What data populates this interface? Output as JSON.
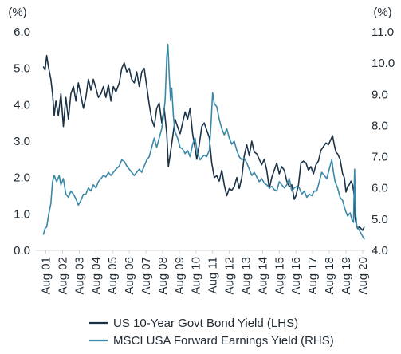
{
  "chart_data": {
    "type": "line",
    "title": "",
    "left_unit": "(%)",
    "right_unit": "(%)",
    "left_ylim": [
      0,
      6
    ],
    "right_ylim": [
      4,
      11
    ],
    "left_ticks": [
      "0.0",
      "1.0",
      "2.0",
      "3.0",
      "4.0",
      "5.0",
      "6.0"
    ],
    "right_ticks": [
      "4.0",
      "5.0",
      "6.0",
      "7.0",
      "8.0",
      "9.0",
      "10.0",
      "11.0"
    ],
    "x_range": [
      2001.0,
      2020.75
    ],
    "x_ticks": [
      {
        "label": "Aug 01",
        "x": 2001.6
      },
      {
        "label": "Aug 02",
        "x": 2002.6
      },
      {
        "label": "Aug 03",
        "x": 2003.6
      },
      {
        "label": "Aug 04",
        "x": 2004.6
      },
      {
        "label": "Aug 05",
        "x": 2005.6
      },
      {
        "label": "Aug 06",
        "x": 2006.6
      },
      {
        "label": "Aug 07",
        "x": 2007.6
      },
      {
        "label": "Aug 08",
        "x": 2008.6
      },
      {
        "label": "Aug 09",
        "x": 2009.6
      },
      {
        "label": "Aug 10",
        "x": 2010.6
      },
      {
        "label": "Aug 11",
        "x": 2011.6
      },
      {
        "label": "Aug 12",
        "x": 2012.6
      },
      {
        "label": "Aug 13",
        "x": 2013.6
      },
      {
        "label": "Aug 14",
        "x": 2014.6
      },
      {
        "label": "Aug 15",
        "x": 2015.6
      },
      {
        "label": "Aug 16",
        "x": 2016.6
      },
      {
        "label": "Aug 17",
        "x": 2017.6
      },
      {
        "label": "Aug 18",
        "x": 2018.6
      },
      {
        "label": "Aug 19",
        "x": 2019.6
      },
      {
        "label": "Aug 20",
        "x": 2020.6
      }
    ],
    "series": [
      {
        "name": "US 10-Year Govt Bond Yield (LHS)",
        "axis": "left",
        "color": "#1c3347",
        "points": [
          [
            2001.45,
            5.05
          ],
          [
            2001.55,
            4.95
          ],
          [
            2001.65,
            5.35
          ],
          [
            2001.75,
            5.05
          ],
          [
            2001.9,
            4.7
          ],
          [
            2002.0,
            4.3
          ],
          [
            2002.1,
            3.7
          ],
          [
            2002.2,
            4.1
          ],
          [
            2002.35,
            3.7
          ],
          [
            2002.5,
            4.3
          ],
          [
            2002.65,
            3.4
          ],
          [
            2002.8,
            4.2
          ],
          [
            2002.95,
            3.6
          ],
          [
            2003.1,
            4.3
          ],
          [
            2003.25,
            4.5
          ],
          [
            2003.4,
            4.1
          ],
          [
            2003.55,
            4.6
          ],
          [
            2003.7,
            4.25
          ],
          [
            2003.85,
            3.9
          ],
          [
            2004.0,
            4.2
          ],
          [
            2004.15,
            4.7
          ],
          [
            2004.3,
            4.4
          ],
          [
            2004.45,
            4.7
          ],
          [
            2004.6,
            4.45
          ],
          [
            2004.75,
            4.2
          ],
          [
            2004.9,
            4.3
          ],
          [
            2005.05,
            4.5
          ],
          [
            2005.2,
            4.2
          ],
          [
            2005.35,
            4.55
          ],
          [
            2005.5,
            4.1
          ],
          [
            2005.65,
            4.5
          ],
          [
            2005.8,
            4.35
          ],
          [
            2006.0,
            4.6
          ],
          [
            2006.15,
            5.0
          ],
          [
            2006.3,
            5.15
          ],
          [
            2006.45,
            4.9
          ],
          [
            2006.6,
            5.0
          ],
          [
            2006.75,
            4.7
          ],
          [
            2006.9,
            4.6
          ],
          [
            2007.05,
            4.9
          ],
          [
            2007.2,
            4.5
          ],
          [
            2007.35,
            4.9
          ],
          [
            2007.5,
            5.0
          ],
          [
            2007.65,
            4.5
          ],
          [
            2007.8,
            4.0
          ],
          [
            2007.95,
            3.6
          ],
          [
            2008.1,
            3.4
          ],
          [
            2008.25,
            3.9
          ],
          [
            2008.4,
            4.05
          ],
          [
            2008.55,
            3.5
          ],
          [
            2008.7,
            3.9
          ],
          [
            2008.85,
            3.2
          ],
          [
            2008.95,
            2.3
          ],
          [
            2009.05,
            2.6
          ],
          [
            2009.2,
            3.1
          ],
          [
            2009.35,
            3.6
          ],
          [
            2009.5,
            3.4
          ],
          [
            2009.65,
            3.2
          ],
          [
            2009.8,
            3.5
          ],
          [
            2009.95,
            3.8
          ],
          [
            2010.1,
            3.6
          ],
          [
            2010.25,
            3.9
          ],
          [
            2010.4,
            3.2
          ],
          [
            2010.55,
            2.8
          ],
          [
            2010.65,
            2.5
          ],
          [
            2010.8,
            2.9
          ],
          [
            2010.95,
            3.4
          ],
          [
            2011.1,
            3.5
          ],
          [
            2011.25,
            3.3
          ],
          [
            2011.4,
            3.1
          ],
          [
            2011.55,
            2.4
          ],
          [
            2011.7,
            2.0
          ],
          [
            2011.85,
            2.05
          ],
          [
            2012.0,
            1.9
          ],
          [
            2012.15,
            2.2
          ],
          [
            2012.3,
            1.8
          ],
          [
            2012.45,
            1.5
          ],
          [
            2012.6,
            1.7
          ],
          [
            2012.75,
            1.65
          ],
          [
            2012.9,
            1.75
          ],
          [
            2013.05,
            2.0
          ],
          [
            2013.2,
            1.7
          ],
          [
            2013.35,
            2.0
          ],
          [
            2013.5,
            2.6
          ],
          [
            2013.65,
            2.9
          ],
          [
            2013.8,
            2.6
          ],
          [
            2013.95,
            3.0
          ],
          [
            2014.1,
            2.7
          ],
          [
            2014.25,
            2.65
          ],
          [
            2014.4,
            2.5
          ],
          [
            2014.55,
            2.35
          ],
          [
            2014.7,
            2.5
          ],
          [
            2014.85,
            2.2
          ],
          [
            2015.0,
            1.7
          ],
          [
            2015.15,
            2.0
          ],
          [
            2015.3,
            2.2
          ],
          [
            2015.45,
            2.4
          ],
          [
            2015.6,
            2.1
          ],
          [
            2015.75,
            2.3
          ],
          [
            2015.9,
            2.2
          ],
          [
            2016.05,
            1.9
          ],
          [
            2016.2,
            1.75
          ],
          [
            2016.35,
            1.8
          ],
          [
            2016.5,
            1.4
          ],
          [
            2016.6,
            1.5
          ],
          [
            2016.75,
            1.8
          ],
          [
            2016.9,
            2.4
          ],
          [
            2017.05,
            2.45
          ],
          [
            2017.2,
            2.4
          ],
          [
            2017.35,
            2.2
          ],
          [
            2017.5,
            2.3
          ],
          [
            2017.65,
            2.1
          ],
          [
            2017.8,
            2.35
          ],
          [
            2017.95,
            2.45
          ],
          [
            2018.1,
            2.75
          ],
          [
            2018.25,
            2.85
          ],
          [
            2018.4,
            2.95
          ],
          [
            2018.55,
            2.9
          ],
          [
            2018.7,
            3.05
          ],
          [
            2018.8,
            3.15
          ],
          [
            2018.9,
            2.9
          ],
          [
            2019.0,
            2.7
          ],
          [
            2019.1,
            2.65
          ],
          [
            2019.25,
            2.5
          ],
          [
            2019.4,
            2.1
          ],
          [
            2019.5,
            2.0
          ],
          [
            2019.6,
            1.6
          ],
          [
            2019.7,
            1.75
          ],
          [
            2019.8,
            1.8
          ],
          [
            2019.9,
            1.9
          ],
          [
            2020.0,
            1.8
          ],
          [
            2020.1,
            1.5
          ],
          [
            2020.15,
            0.9
          ],
          [
            2020.2,
            0.75
          ],
          [
            2020.3,
            0.6
          ],
          [
            2020.4,
            0.65
          ],
          [
            2020.5,
            0.6
          ],
          [
            2020.6,
            0.55
          ],
          [
            2020.7,
            0.65
          ]
        ]
      },
      {
        "name": "MSCI USA Forward Earnings Yield (RHS)",
        "axis": "right",
        "color": "#3a89a8",
        "points": [
          [
            2001.45,
            4.5
          ],
          [
            2001.55,
            4.7
          ],
          [
            2001.65,
            4.75
          ],
          [
            2001.75,
            5.1
          ],
          [
            2001.9,
            5.5
          ],
          [
            2002.0,
            6.2
          ],
          [
            2002.1,
            6.4
          ],
          [
            2002.25,
            6.2
          ],
          [
            2002.4,
            6.4
          ],
          [
            2002.5,
            6.1
          ],
          [
            2002.65,
            6.3
          ],
          [
            2002.8,
            5.8
          ],
          [
            2002.95,
            5.7
          ],
          [
            2003.1,
            5.9
          ],
          [
            2003.25,
            5.8
          ],
          [
            2003.4,
            5.65
          ],
          [
            2003.55,
            5.45
          ],
          [
            2003.7,
            5.6
          ],
          [
            2003.85,
            5.8
          ],
          [
            2004.0,
            5.8
          ],
          [
            2004.15,
            6.0
          ],
          [
            2004.3,
            5.9
          ],
          [
            2004.45,
            6.1
          ],
          [
            2004.6,
            6.0
          ],
          [
            2004.75,
            6.2
          ],
          [
            2004.9,
            6.3
          ],
          [
            2005.05,
            6.4
          ],
          [
            2005.2,
            6.35
          ],
          [
            2005.35,
            6.5
          ],
          [
            2005.5,
            6.4
          ],
          [
            2005.65,
            6.5
          ],
          [
            2005.8,
            6.6
          ],
          [
            2006.0,
            6.7
          ],
          [
            2006.15,
            6.9
          ],
          [
            2006.3,
            6.85
          ],
          [
            2006.45,
            6.7
          ],
          [
            2006.6,
            6.6
          ],
          [
            2006.75,
            6.5
          ],
          [
            2006.9,
            6.4
          ],
          [
            2007.05,
            6.5
          ],
          [
            2007.2,
            6.6
          ],
          [
            2007.35,
            6.5
          ],
          [
            2007.5,
            6.7
          ],
          [
            2007.65,
            6.9
          ],
          [
            2007.8,
            7.0
          ],
          [
            2007.95,
            7.3
          ],
          [
            2008.1,
            7.6
          ],
          [
            2008.25,
            7.3
          ],
          [
            2008.4,
            7.6
          ],
          [
            2008.55,
            7.9
          ],
          [
            2008.65,
            8.3
          ],
          [
            2008.75,
            8.8
          ],
          [
            2008.85,
            10.2
          ],
          [
            2008.92,
            10.6
          ],
          [
            2009.0,
            9.6
          ],
          [
            2009.08,
            8.8
          ],
          [
            2009.15,
            9.2
          ],
          [
            2009.25,
            8.3
          ],
          [
            2009.35,
            7.8
          ],
          [
            2009.5,
            7.6
          ],
          [
            2009.65,
            7.3
          ],
          [
            2009.8,
            7.25
          ],
          [
            2009.95,
            7.1
          ],
          [
            2010.1,
            7.2
          ],
          [
            2010.25,
            7.0
          ],
          [
            2010.4,
            7.4
          ],
          [
            2010.55,
            7.6
          ],
          [
            2010.7,
            7.1
          ],
          [
            2010.85,
            6.9
          ],
          [
            2011.0,
            7.0
          ],
          [
            2011.1,
            7.05
          ],
          [
            2011.25,
            7.0
          ],
          [
            2011.4,
            7.2
          ],
          [
            2011.5,
            8.0
          ],
          [
            2011.6,
            9.05
          ],
          [
            2011.7,
            8.7
          ],
          [
            2011.85,
            8.6
          ],
          [
            2012.0,
            8.2
          ],
          [
            2012.15,
            7.9
          ],
          [
            2012.3,
            7.7
          ],
          [
            2012.45,
            7.9
          ],
          [
            2012.6,
            7.6
          ],
          [
            2012.75,
            7.4
          ],
          [
            2012.9,
            7.5
          ],
          [
            2013.05,
            7.2
          ],
          [
            2013.2,
            7.0
          ],
          [
            2013.35,
            6.9
          ],
          [
            2013.5,
            6.95
          ],
          [
            2013.65,
            6.8
          ],
          [
            2013.8,
            6.6
          ],
          [
            2013.95,
            6.4
          ],
          [
            2014.1,
            6.5
          ],
          [
            2014.25,
            6.35
          ],
          [
            2014.4,
            6.2
          ],
          [
            2014.55,
            6.3
          ],
          [
            2014.7,
            6.15
          ],
          [
            2014.85,
            6.1
          ],
          [
            2015.0,
            6.0
          ],
          [
            2015.15,
            6.05
          ],
          [
            2015.3,
            5.95
          ],
          [
            2015.45,
            5.9
          ],
          [
            2015.6,
            6.2
          ],
          [
            2015.75,
            6.1
          ],
          [
            2015.9,
            6.0
          ],
          [
            2016.05,
            6.1
          ],
          [
            2016.2,
            6.3
          ],
          [
            2016.35,
            5.9
          ],
          [
            2016.5,
            6.0
          ],
          [
            2016.65,
            6.05
          ],
          [
            2016.8,
            6.0
          ],
          [
            2016.95,
            5.8
          ],
          [
            2017.1,
            5.9
          ],
          [
            2017.25,
            5.7
          ],
          [
            2017.4,
            5.8
          ],
          [
            2017.55,
            5.75
          ],
          [
            2017.7,
            5.9
          ],
          [
            2017.85,
            5.9
          ],
          [
            2018.0,
            6.2
          ],
          [
            2018.15,
            6.5
          ],
          [
            2018.3,
            6.4
          ],
          [
            2018.45,
            6.3
          ],
          [
            2018.6,
            6.6
          ],
          [
            2018.75,
            6.9
          ],
          [
            2018.85,
            6.5
          ],
          [
            2018.95,
            6.2
          ],
          [
            2019.1,
            6.0
          ],
          [
            2019.25,
            5.7
          ],
          [
            2019.4,
            5.6
          ],
          [
            2019.55,
            5.3
          ],
          [
            2019.7,
            5.1
          ],
          [
            2019.85,
            5.2
          ],
          [
            2019.95,
            5.0
          ],
          [
            2020.05,
            4.9
          ],
          [
            2020.12,
            6.6
          ],
          [
            2020.18,
            5.2
          ],
          [
            2020.25,
            4.8
          ],
          [
            2020.35,
            4.7
          ],
          [
            2020.45,
            4.6
          ],
          [
            2020.55,
            4.5
          ],
          [
            2020.65,
            4.4
          ],
          [
            2020.72,
            4.35
          ]
        ]
      }
    ],
    "legend_placement": "bottom-center",
    "legend": [
      "US 10-Year Govt Bond Yield (LHS)",
      "MSCI USA Forward Earnings Yield (RHS)"
    ],
    "grid": false
  }
}
